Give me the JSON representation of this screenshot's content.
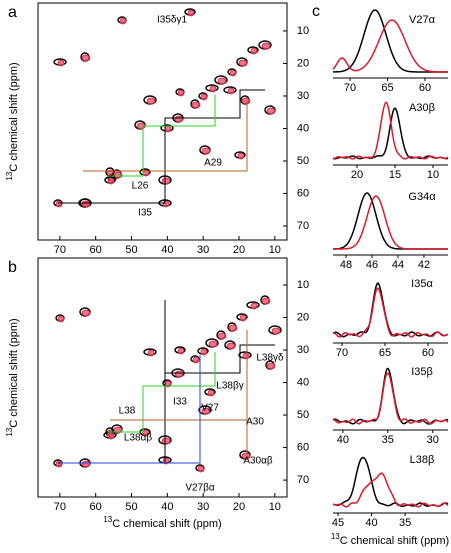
{
  "panels": [
    {
      "letter": "a",
      "xticks": [
        70,
        60,
        50,
        40,
        30,
        20,
        10
      ],
      "yticks": [
        10,
        20,
        30,
        40,
        50,
        60,
        70
      ],
      "xlim": [
        76.1,
        6.6
      ],
      "ylim": [
        1.4,
        74.3
      ],
      "y_label": {
        "sup": "13",
        "text": "C chemical shift (ppm)"
      },
      "annotations": [
        "I35δγ1",
        "L26",
        "A29",
        "I35"
      ]
    },
    {
      "letter": "b",
      "xticks": [
        70,
        60,
        50,
        40,
        30,
        20,
        10
      ],
      "yticks": [
        10,
        20,
        30,
        40,
        50,
        60,
        70
      ],
      "xlim": [
        76.1,
        6.6
      ],
      "ylim": [
        1.7,
        75.2
      ],
      "y_label": {
        "sup": "13",
        "text": "C chemical shift (ppm)"
      },
      "x_label": {
        "sup": "13",
        "text": "C chemical shift (ppm)"
      },
      "annotations": [
        "L38γδ",
        "L38βγ",
        "A30",
        "V27",
        "I33",
        "L38",
        "L38αβ",
        "A30αβ",
        "V27βα"
      ]
    }
  ],
  "panel_c": {
    "letter": "c",
    "spectra": [
      {
        "label": "V27α",
        "xticks": [
          70,
          65,
          60
        ],
        "xlim": [
          72.27,
          56.93
        ]
      },
      {
        "label": "A30β",
        "xticks": [
          20,
          15,
          10
        ],
        "xlim": [
          23.16,
          8.03
        ]
      },
      {
        "label": "G34α",
        "xticks": [
          48,
          46,
          44,
          42
        ],
        "xlim": [
          49.0,
          40.15
        ]
      },
      {
        "label": "I35α",
        "xticks": [
          70,
          65,
          60
        ],
        "xlim": [
          71.05,
          57.67
        ]
      },
      {
        "label": "I35β",
        "xticks": [
          40,
          35,
          30
        ],
        "xlim": [
          41.1,
          28.3
        ]
      },
      {
        "label": "L38β",
        "xticks": [
          45,
          40,
          35
        ],
        "xlim": [
          45.75,
          28.6
        ]
      }
    ],
    "x_label": {
      "sup": "13",
      "text": "C chemical shift (ppm)"
    }
  }
}
